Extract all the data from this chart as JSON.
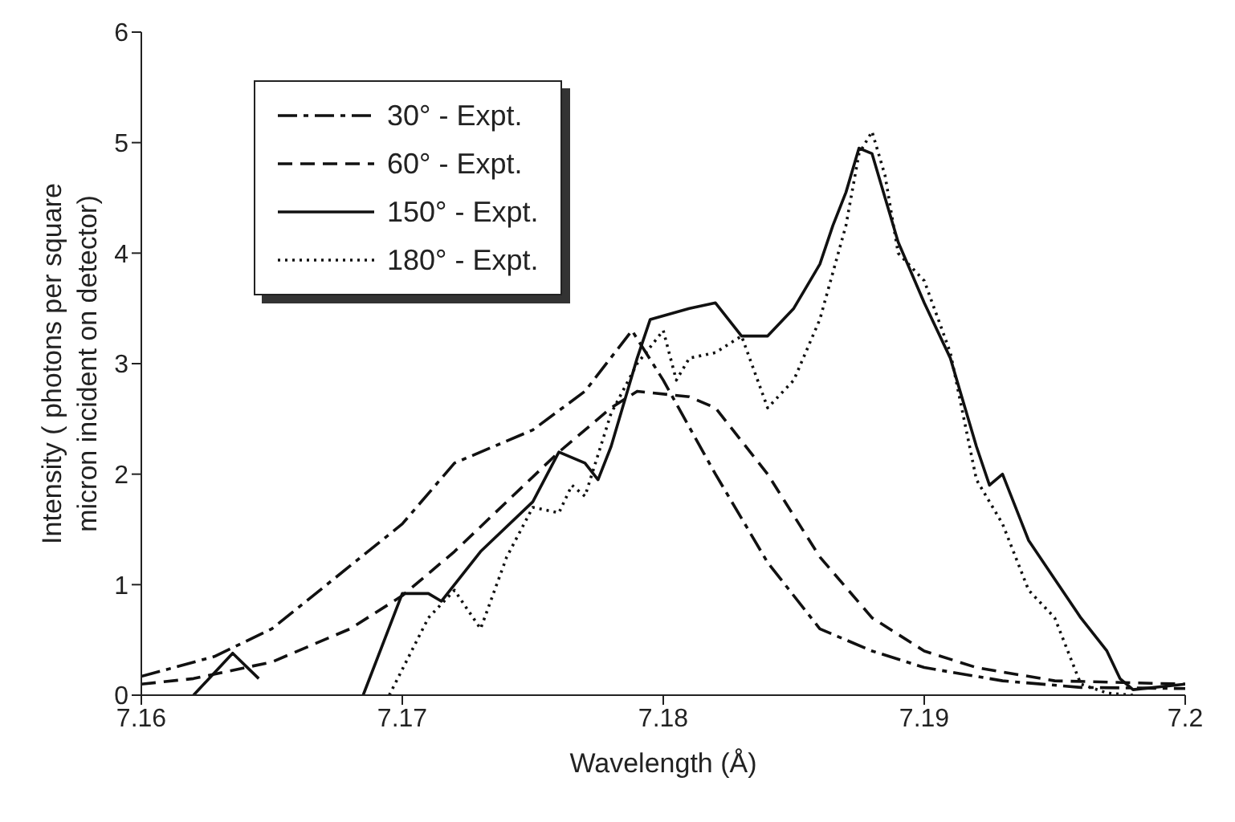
{
  "chart_data": {
    "type": "line",
    "xlabel": "Wavelength (Å)",
    "ylabel": "Intensity ( photons per square micron incident on detector)",
    "xlim": [
      7.16,
      7.2
    ],
    "xticks": [
      7.16,
      7.17,
      7.18,
      7.19,
      7.2
    ],
    "ylim": [
      0,
      6
    ],
    "yticks": [
      0,
      1,
      2,
      3,
      4,
      5,
      6
    ],
    "legend": "top left",
    "marker": "none",
    "series": [
      {
        "name": "30° - Expt.",
        "color": "#111111",
        "line_style": "dashdot",
        "x": [
          7.16,
          7.1628,
          7.165,
          7.17,
          7.172,
          7.175,
          7.177,
          7.1788,
          7.18,
          7.182,
          7.184,
          7.186,
          7.188,
          7.19,
          7.193,
          7.196,
          7.2
        ],
        "values": [
          0.17,
          0.35,
          0.6,
          1.55,
          2.1,
          2.4,
          2.75,
          3.3,
          2.85,
          2.0,
          1.2,
          0.6,
          0.4,
          0.25,
          0.13,
          0.07,
          0.06
        ]
      },
      {
        "name": "60° - Expt.",
        "color": "#111111",
        "line_style": "dashed",
        "x": [
          7.16,
          7.162,
          7.165,
          7.168,
          7.17,
          7.172,
          7.174,
          7.176,
          7.178,
          7.179,
          7.181,
          7.182,
          7.184,
          7.186,
          7.188,
          7.19,
          7.192,
          7.195,
          7.2
        ],
        "values": [
          0.1,
          0.15,
          0.3,
          0.6,
          0.9,
          1.3,
          1.75,
          2.2,
          2.6,
          2.75,
          2.7,
          2.6,
          2.0,
          1.25,
          0.7,
          0.4,
          0.25,
          0.13,
          0.1
        ]
      },
      {
        "name": "150° - Expt.",
        "color": "#111111",
        "line_style": "solid",
        "x": [
          7.162,
          7.1635,
          7.1645,
          7.1646,
          7.1685,
          7.17,
          7.171,
          7.1715,
          7.173,
          7.175,
          7.176,
          7.177,
          7.1775,
          7.178,
          7.179,
          7.1795,
          7.181,
          7.182,
          7.183,
          7.184,
          7.185,
          7.186,
          7.1865,
          7.187,
          7.1875,
          7.188,
          7.189,
          7.19,
          7.191,
          7.192,
          7.1925,
          7.193,
          7.194,
          7.195,
          7.196,
          7.197,
          7.1975,
          7.198,
          7.2
        ],
        "values": [
          0,
          0.38,
          0.15,
          null,
          0,
          0.92,
          0.92,
          0.85,
          1.3,
          1.75,
          2.2,
          2.1,
          1.95,
          2.25,
          3.05,
          3.4,
          3.5,
          3.55,
          3.25,
          3.25,
          3.5,
          3.9,
          4.25,
          4.55,
          4.95,
          4.9,
          4.1,
          3.55,
          3.05,
          2.25,
          1.9,
          2.0,
          1.4,
          1.05,
          0.7,
          0.4,
          0.15,
          0.05,
          0.1
        ]
      },
      {
        "name": "180° - Expt.",
        "color": "#111111",
        "line_style": "dotted",
        "x": [
          7.1695,
          7.171,
          7.172,
          7.173,
          7.174,
          7.175,
          7.176,
          7.1765,
          7.177,
          7.178,
          7.179,
          7.18,
          7.1805,
          7.181,
          7.182,
          7.183,
          7.184,
          7.185,
          7.186,
          7.187,
          7.1875,
          7.188,
          7.1885,
          7.189,
          7.19,
          7.191,
          7.192,
          7.193,
          7.194,
          7.195,
          7.196,
          7.197,
          7.198
        ],
        "values": [
          0,
          0.7,
          0.95,
          0.6,
          1.25,
          1.7,
          1.65,
          1.9,
          1.8,
          2.55,
          3.0,
          3.3,
          2.85,
          3.05,
          3.1,
          3.25,
          2.6,
          2.85,
          3.4,
          4.25,
          4.9,
          5.1,
          4.7,
          4.0,
          3.75,
          3.1,
          1.95,
          1.55,
          0.95,
          0.7,
          0.1,
          0.02,
          0
        ]
      }
    ]
  }
}
